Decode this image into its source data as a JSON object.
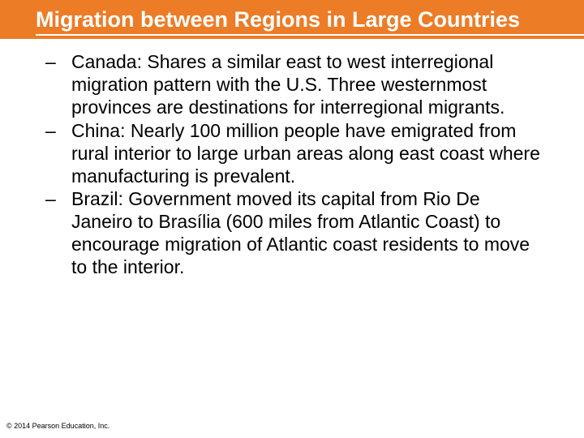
{
  "slide": {
    "title": "Migration between Regions in Large Countries",
    "bullets": [
      "Canada: Shares a similar east to west interregional migration pattern with the U.S. Three westernmost provinces are destinations for interregional migrants.",
      "China: Nearly 100 million people have emigrated from rural interior to large urban areas along east coast where manufacturing is prevalent.",
      "Brazil: Government moved its capital from Rio De Janeiro to Brasília (600 miles from Atlantic Coast) to encourage migration of Atlantic coast residents to move to the interior."
    ],
    "footer": "© 2014 Pearson Education, Inc."
  },
  "style": {
    "header_bg": "#ec7c26",
    "title_color": "#ffffff",
    "underline_color": "#ffffff",
    "body_color": "#000000",
    "footer_color": "#000000",
    "title_fontsize": 27,
    "body_fontsize": 23,
    "footer_fontsize": 9,
    "font_family": "Arial"
  }
}
